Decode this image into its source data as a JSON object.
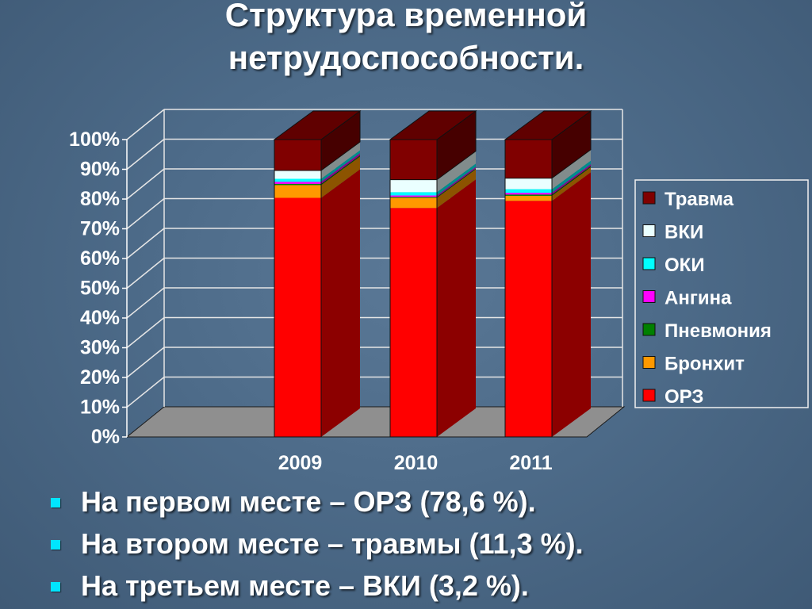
{
  "slide": {
    "title_line1": "Структура временной",
    "title_line2": "нетрудоспособности.",
    "bullets": [
      "На первом месте – ОРЗ (78,6 %).",
      "На втором месте – травмы (11,3 %).",
      "На третьем месте – ВКИ (3,2 %)."
    ],
    "bullet_color": "#00e5ff"
  },
  "chart_data": {
    "type": "bar",
    "stacked": "percent",
    "three_d": true,
    "categories": [
      "2009",
      "2010",
      "2011"
    ],
    "yticks": [
      "0%",
      "10%",
      "20%",
      "30%",
      "40%",
      "50%",
      "60%",
      "70%",
      "80%",
      "90%",
      "100%"
    ],
    "ylim": [
      0,
      100
    ],
    "grid": true,
    "legend_position": "right",
    "series": [
      {
        "name": "ОРЗ",
        "color": "#ff0000",
        "values": [
          80.4,
          77.0,
          79.4
        ]
      },
      {
        "name": "Бронхит",
        "color": "#ff9900",
        "values": [
          4.3,
          3.4,
          1.7
        ]
      },
      {
        "name": "Пневмония",
        "color": "#008000",
        "values": [
          0.4,
          0.3,
          0.4
        ]
      },
      {
        "name": "Ангина",
        "color": "#ff00ff",
        "values": [
          0.7,
          0.5,
          0.6
        ]
      },
      {
        "name": "ОКИ",
        "color": "#00ffff",
        "values": [
          1.0,
          1.1,
          1.2
        ]
      },
      {
        "name": "ВКИ",
        "color": "#eaffff",
        "values": [
          2.8,
          4.2,
          3.7
        ]
      },
      {
        "name": "Травма",
        "color": "#800000",
        "values": [
          10.4,
          13.5,
          13.0
        ]
      }
    ]
  }
}
